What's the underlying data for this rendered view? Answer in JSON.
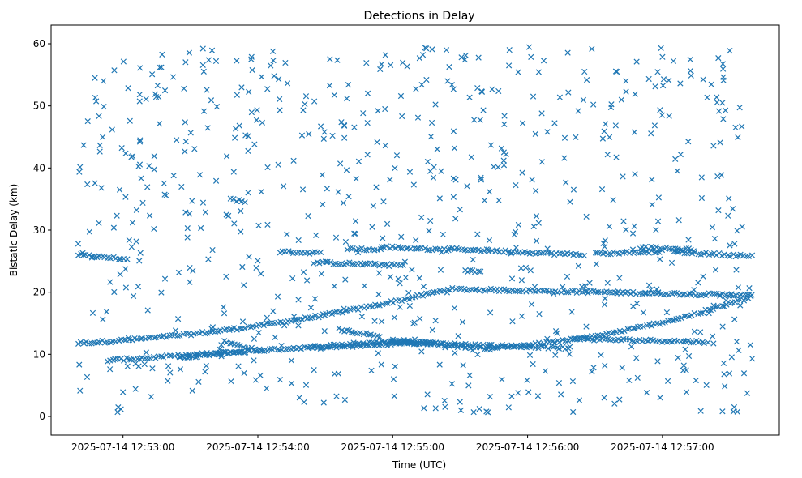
{
  "chart_data": {
    "type": "scatter",
    "title": "Detections in Delay",
    "xlabel": "Time (UTC)",
    "ylabel": "Bistatic Delay (km)",
    "x_is_time": true,
    "x_start": "2025-07-14 12:52:40",
    "x_end": "2025-07-14 12:57:40",
    "xlim": [
      "2025-07-14 12:52:28",
      "2025-07-14 12:57:52"
    ],
    "ylim": [
      -3,
      63
    ],
    "xticks": [
      "2025-07-14 12:53:00",
      "2025-07-14 12:54:00",
      "2025-07-14 12:55:00",
      "2025-07-14 12:56:00",
      "2025-07-14 12:57:00"
    ],
    "yticks": [
      0,
      10,
      20,
      30,
      40,
      50,
      60
    ],
    "marker": "x",
    "color": "#1f77b4",
    "grid": false,
    "tracks": [
      {
        "t": [
          0,
          22
        ],
        "y": [
          26.0,
          25.3
        ]
      },
      {
        "t": [
          0,
          300
        ],
        "y": [
          11.8,
          19.5
        ],
        "curve": "cubic",
        "points": [
          [
            0,
            11.8
          ],
          [
            100,
            15.5
          ],
          [
            165,
            20.5
          ]
        ]
      },
      {
        "t": [
          13,
          150
        ],
        "y": [
          9.0,
          12.3
        ]
      },
      {
        "t": [
          45,
          75
        ],
        "y": [
          9.5,
          10.5
        ]
      },
      {
        "t": [
          65,
          82
        ],
        "y": [
          12.0,
          10.5
        ]
      },
      {
        "t": [
          68,
          75
        ],
        "y": [
          35.0,
          34.5
        ]
      },
      {
        "t": [
          90,
          108
        ],
        "y": [
          26.5,
          26.3
        ]
      },
      {
        "t": [
          105,
          145
        ],
        "y": [
          24.8,
          24.3
        ]
      },
      {
        "t": [
          103,
          160
        ],
        "y": [
          11.0,
          12.0
        ]
      },
      {
        "t": [
          116,
          135
        ],
        "y": [
          14.0,
          12.8
        ]
      },
      {
        "t": [
          120,
          135
        ],
        "y": [
          27.0,
          26.8
        ]
      },
      {
        "t": [
          135,
          165
        ],
        "y": [
          27.3,
          26.8
        ]
      },
      {
        "t": [
          135,
          220
        ],
        "y": [
          12.0,
          11.0
        ]
      },
      {
        "t": [
          165,
          225
        ],
        "y": [
          27.0,
          26.0
        ]
      },
      {
        "t": [
          172,
          180
        ],
        "y": [
          23.5,
          23.2
        ]
      },
      {
        "t": [
          220,
          280
        ],
        "y": [
          12.5,
          12.0
        ]
      },
      {
        "t": [
          230,
          260
        ],
        "y": [
          26.2,
          26.6
        ]
      },
      {
        "t": [
          250,
          275
        ],
        "y": [
          27.2,
          26.8
        ]
      },
      {
        "t": [
          265,
          300
        ],
        "y": [
          26.5,
          25.8
        ]
      }
    ],
    "noise_count": 720
  }
}
